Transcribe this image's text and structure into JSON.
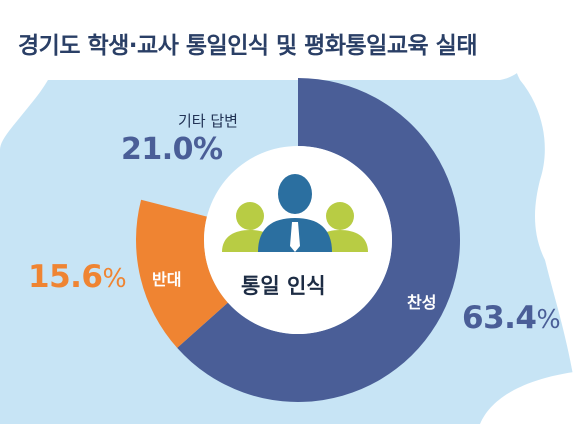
{
  "chart_data": {
    "type": "pie",
    "style": "donut",
    "title": "경기도 학생·교사 통일인식 및 평화통일교육 실태",
    "center_label": "통일 인식",
    "slices": [
      {
        "label": "찬성",
        "value": 63.4,
        "display_value": "63.4",
        "unit": "%",
        "color": "#4a5e97"
      },
      {
        "label": "반대",
        "value": 15.6,
        "display_value": "15.6",
        "unit": "%",
        "color": "#ef8432"
      },
      {
        "label": "기타 답변",
        "value": 21.0,
        "display_value": "21.0%",
        "unit": "",
        "color": "none"
      }
    ]
  },
  "colors": {
    "background_sky": "#c7e4f5",
    "silhouette": "#ffffff",
    "title": "#2a3f66",
    "pct_blue": "#4a5e97",
    "pct_orange": "#ef8432",
    "person_main": "#2b6fa0",
    "person_side": "#b8cc44"
  },
  "icons": [
    "people-group-icon"
  ]
}
